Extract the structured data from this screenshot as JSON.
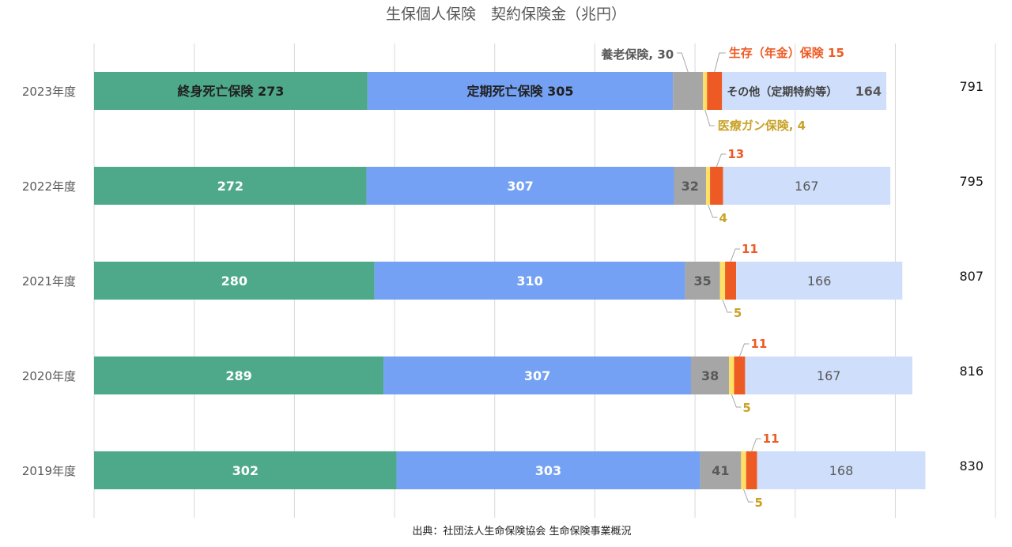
{
  "chart_data": {
    "type": "bar",
    "orientation": "horizontal",
    "stacked": true,
    "title": "生保個人保険　契約保険金（兆円）",
    "source": "出典：社団法人生命保険協会 生命保険事業概況",
    "categories": [
      "2023年度",
      "2022年度",
      "2021年度",
      "2020年度",
      "2019年度"
    ],
    "totals": [
      "791",
      "795",
      "807",
      "816",
      "830"
    ],
    "series": [
      {
        "name": "終身死亡保険",
        "values": [
          273,
          272,
          280,
          289,
          302
        ],
        "color": "#4ea88a",
        "label_color": "#ffffff"
      },
      {
        "name": "定期死亡保険",
        "values": [
          305,
          307,
          310,
          307,
          303
        ],
        "color": "#74a1f4",
        "label_color": "#ffffff"
      },
      {
        "name": "養老保険",
        "values": [
          30,
          32,
          35,
          38,
          41
        ],
        "color": "#a6a6a6",
        "label_color": "#595959"
      },
      {
        "name": "医療ガン保険",
        "values": [
          4,
          4,
          5,
          5,
          5
        ],
        "color": "#ffe066",
        "label_color": "#c9a227"
      },
      {
        "name": "生存（年金）保険",
        "values": [
          15,
          13,
          11,
          11,
          11
        ],
        "color": "#ee5a24",
        "label_color": "#ee5a24"
      },
      {
        "name": "その他（定期特約等）",
        "values": [
          164,
          167,
          166,
          167,
          168
        ],
        "color": "#cfdffb",
        "label_color": "#595959"
      }
    ],
    "first_bar_labels": {
      "whole": "終身死亡保険 273",
      "term": "定期死亡保険 305",
      "endowment": "養老保険, 30",
      "medical": "医療ガン保険, 4",
      "annuity": "生存（年金）保険 15",
      "other_name": "その他（定期特約等）",
      "other_value": "164"
    },
    "xlim": [
      0,
      900
    ],
    "grid": true,
    "legend": "none"
  }
}
